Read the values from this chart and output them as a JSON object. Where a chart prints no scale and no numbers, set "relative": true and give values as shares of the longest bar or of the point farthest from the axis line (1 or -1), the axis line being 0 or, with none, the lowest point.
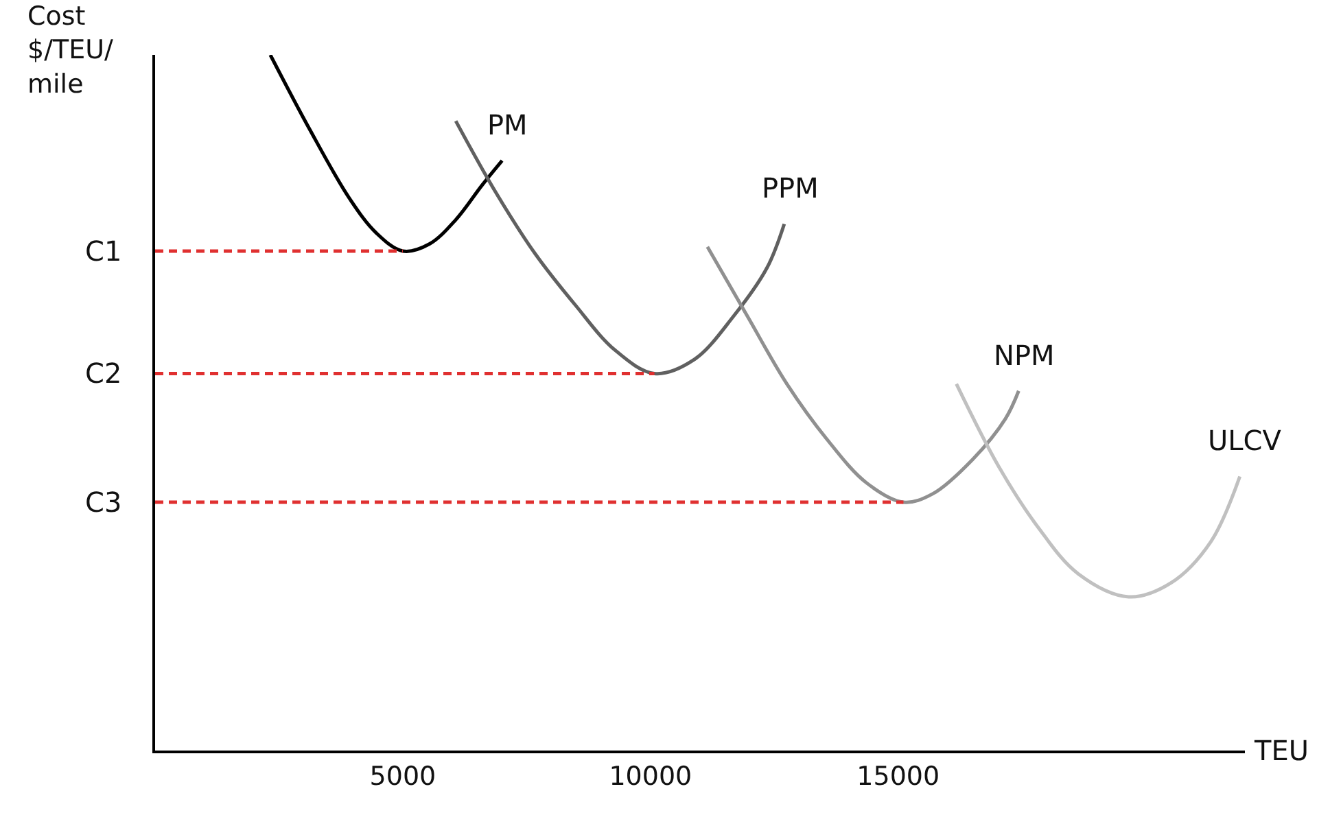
{
  "chart_data": {
    "type": "line",
    "relative": true,
    "xlabel": "TEU",
    "ylabel": "Cost\n$/TEU/\nmile",
    "xlim": [
      0,
      22000
    ],
    "xticks": [
      5000,
      10000,
      15000
    ],
    "grid": false,
    "legend": false,
    "marker": "none",
    "tick_labels": "x",
    "series": [
      {
        "name": "PM",
        "color": "#000000",
        "x": [
          2326,
          3128,
          3930,
          4465,
          5000,
          5535,
          6070,
          6604,
          7005
        ],
        "values": [
          1.0,
          0.892,
          0.793,
          0.744,
          0.718,
          0.728,
          0.763,
          0.813,
          0.848
        ]
      },
      {
        "name": "PPM",
        "color": "#606060",
        "x": [
          6070,
          6872,
          7674,
          8476,
          9278,
          10080,
          10882,
          11684,
          12353,
          12701
        ],
        "values": [
          0.905,
          0.803,
          0.714,
          0.641,
          0.576,
          0.542,
          0.562,
          0.625,
          0.694,
          0.757
        ]
      },
      {
        "name": "NPM",
        "color": "#909090",
        "x": [
          11150,
          11952,
          12754,
          13556,
          14358,
          15107,
          15695,
          16497,
          17166,
          17433
        ],
        "values": [
          0.724,
          0.625,
          0.527,
          0.448,
          0.385,
          0.357,
          0.369,
          0.418,
          0.477,
          0.517
        ]
      },
      {
        "name": "ULCV",
        "color": "#c0c0c0",
        "x": [
          16176,
          17032,
          17834,
          18636,
          19652,
          20508,
          21310,
          21898
        ],
        "values": [
          0.527,
          0.408,
          0.32,
          0.254,
          0.221,
          0.241,
          0.3,
          0.394
        ]
      },
      {
        "name": "C1",
        "color": "#e03030",
        "line_style": "dashed",
        "x": [
          0,
          5000
        ],
        "values": [
          0.718,
          0.718
        ]
      },
      {
        "name": "C2",
        "color": "#e03030",
        "line_style": "dashed",
        "x": [
          0,
          10080
        ],
        "values": [
          0.542,
          0.542
        ]
      },
      {
        "name": "C3",
        "color": "#e03030",
        "line_style": "dashed",
        "x": [
          0,
          15107
        ],
        "values": [
          0.357,
          0.357
        ]
      }
    ]
  }
}
